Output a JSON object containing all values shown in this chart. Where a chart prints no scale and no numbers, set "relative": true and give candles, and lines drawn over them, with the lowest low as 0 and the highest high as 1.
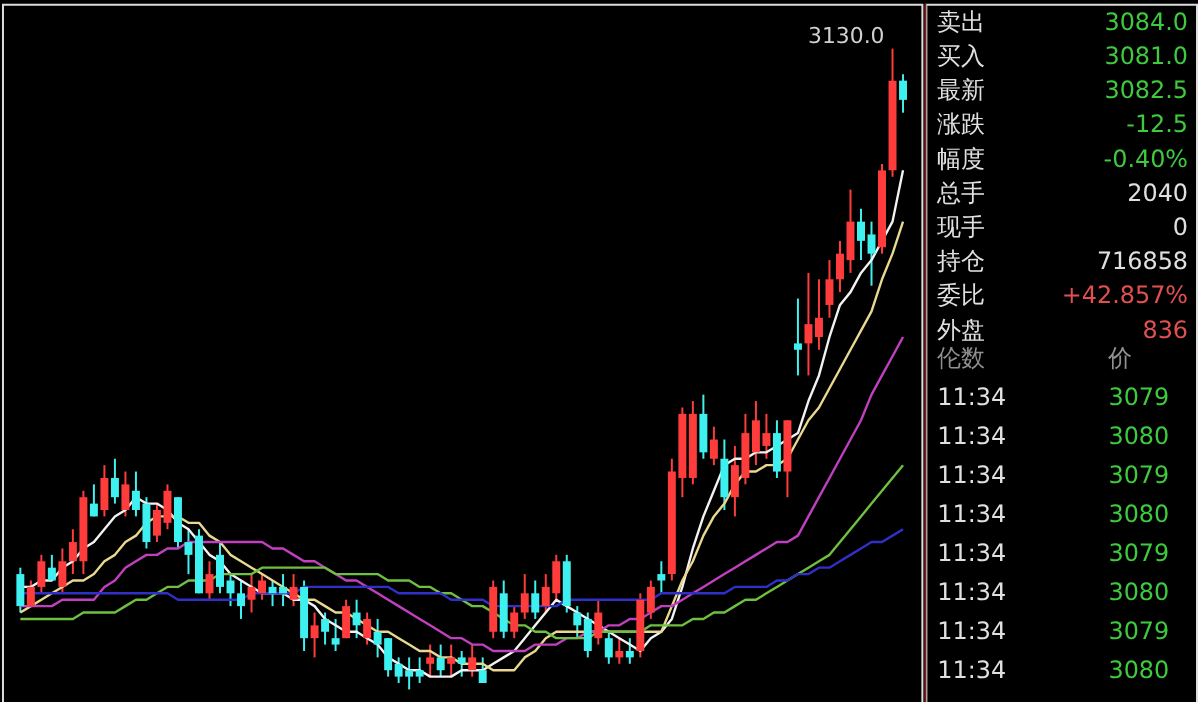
{
  "chart_data": [
    {
      "type": "candlestick",
      "relative": true,
      "tick_labels": false,
      "categories": [
        null,
        null,
        null,
        null,
        null,
        null,
        null,
        null,
        null,
        null,
        null,
        null,
        null,
        null,
        null,
        null,
        null,
        null,
        null,
        null,
        null,
        null,
        null,
        null,
        null,
        null,
        null,
        null,
        null,
        null,
        null,
        null,
        null,
        null,
        null,
        null,
        null,
        null,
        null,
        null,
        null,
        null,
        null,
        null,
        null,
        null,
        null,
        null,
        null,
        null,
        null,
        null,
        null,
        null,
        null,
        null,
        null,
        null,
        null,
        null,
        null,
        null,
        null,
        null,
        null,
        null,
        null,
        null,
        null,
        null,
        null,
        null,
        null,
        null,
        null,
        null,
        null,
        null,
        null,
        null,
        null,
        null,
        null,
        null,
        null
      ],
      "colors": [
        "#3ff0f0",
        "#ff3c3c",
        "#ff3c3c",
        "#3ff0f0",
        "#ff3c3c",
        "#ff3c3c",
        "#ff3c3c",
        "#3ff0f0",
        "#ff3c3c",
        "#3ff0f0",
        "#ff3c3c",
        "#3ff0f0",
        "#3ff0f0",
        "#ff3c3c",
        "#ff3c3c",
        "#3ff0f0",
        "#3ff0f0",
        "#3ff0f0",
        "#ff3c3c",
        "#3ff0f0",
        "#3ff0f0",
        "#3ff0f0",
        "#ff3c3c",
        "#ff3c3c",
        "#3ff0f0",
        "#3ff0f0",
        "#ff3c3c",
        "#3ff0f0",
        "#ff3c3c",
        "#3ff0f0",
        "#3ff0f0",
        "#ff3c3c",
        "#3ff0f0",
        "#ff3c3c",
        "#3ff0f0",
        "#3ff0f0",
        "#3ff0f0",
        "#3ff0f0",
        "#3ff0f0",
        "#ff3c3c",
        "#3ff0f0",
        "#ff3c3c",
        "#3ff0f0",
        "#ff3c3c",
        "#3ff0f0",
        "#ff3c3c",
        "#3ff0f0",
        "#ff3c3c",
        "#ff3c3c",
        "#3ff0f0",
        "#ff3c3c",
        "#ff3c3c",
        "#3ff0f0",
        "#3ff0f0",
        "#3ff0f0",
        "#ff3c3c",
        "#3ff0f0",
        "#ff3c3c",
        "#3ff0f0",
        "#ff3c3c",
        "#ff3c3c",
        "#3ff0f0",
        "#ff3c3c",
        "#ff3c3c",
        "#ff3c3c",
        "#3ff0f0",
        "#ff3c3c",
        "#3ff0f0",
        "#ff3c3c",
        "#ff3c3c",
        "#ff3c3c",
        "#ff3c3c",
        "#3ff0f0",
        "#ff3c3c",
        "#3ff0f0",
        "#ff3c3c",
        "#ff3c3c",
        "#ff3c3c",
        "#ff3c3c",
        "#ff3c3c",
        "#3ff0f0",
        "#3ff0f0",
        "#ff3c3c",
        "#ff3c3c",
        "#3ff0f0"
      ],
      "ohlc": [
        [
          0.18,
          0.19,
          0.12,
          0.13
        ],
        [
          0.13,
          0.17,
          0.13,
          0.16
        ],
        [
          0.16,
          0.21,
          0.15,
          0.2
        ],
        [
          0.19,
          0.21,
          0.17,
          0.17
        ],
        [
          0.16,
          0.22,
          0.15,
          0.2
        ],
        [
          0.2,
          0.25,
          0.18,
          0.23
        ],
        [
          0.2,
          0.31,
          0.18,
          0.3
        ],
        [
          0.29,
          0.32,
          0.27,
          0.27
        ],
        [
          0.28,
          0.35,
          0.27,
          0.33
        ],
        [
          0.33,
          0.36,
          0.29,
          0.3
        ],
        [
          0.28,
          0.34,
          0.27,
          0.32
        ],
        [
          0.31,
          0.34,
          0.27,
          0.28
        ],
        [
          0.29,
          0.3,
          0.22,
          0.23
        ],
        [
          0.24,
          0.29,
          0.23,
          0.28
        ],
        [
          0.26,
          0.32,
          0.25,
          0.31
        ],
        [
          0.3,
          0.3,
          0.22,
          0.23
        ],
        [
          0.23,
          0.25,
          0.18,
          0.21
        ],
        [
          0.24,
          0.25,
          0.15,
          0.15
        ],
        [
          0.15,
          0.2,
          0.14,
          0.18
        ],
        [
          0.21,
          0.23,
          0.15,
          0.16
        ],
        [
          0.17,
          0.18,
          0.13,
          0.15
        ],
        [
          0.15,
          0.17,
          0.11,
          0.13
        ],
        [
          0.14,
          0.18,
          0.12,
          0.16
        ],
        [
          0.15,
          0.18,
          0.14,
          0.17
        ],
        [
          0.16,
          0.17,
          0.13,
          0.15
        ],
        [
          0.16,
          0.18,
          0.13,
          0.15
        ],
        [
          0.14,
          0.18,
          0.13,
          0.16
        ],
        [
          0.16,
          0.17,
          0.06,
          0.08
        ],
        [
          0.08,
          0.12,
          0.05,
          0.1
        ],
        [
          0.11,
          0.12,
          0.07,
          0.09
        ],
        [
          0.08,
          0.11,
          0.06,
          0.07
        ],
        [
          0.08,
          0.14,
          0.08,
          0.13
        ],
        [
          0.12,
          0.14,
          0.08,
          0.1
        ],
        [
          0.08,
          0.12,
          0.07,
          0.11
        ],
        [
          0.09,
          0.11,
          0.05,
          0.07
        ],
        [
          0.08,
          0.08,
          0.02,
          0.03
        ],
        [
          0.04,
          0.05,
          0.01,
          0.02
        ],
        [
          0.03,
          0.05,
          0.0,
          0.02
        ],
        [
          0.03,
          0.05,
          0.01,
          0.02
        ],
        [
          0.04,
          0.07,
          0.02,
          0.05
        ],
        [
          0.05,
          0.07,
          0.02,
          0.03
        ],
        [
          0.04,
          0.07,
          0.02,
          0.05
        ],
        [
          0.05,
          0.06,
          0.02,
          0.04
        ],
        [
          0.03,
          0.07,
          0.02,
          0.05
        ],
        [
          0.03,
          0.05,
          0.01,
          0.01
        ],
        [
          0.09,
          0.17,
          0.08,
          0.16
        ],
        [
          0.15,
          0.17,
          0.08,
          0.09
        ],
        [
          0.09,
          0.13,
          0.08,
          0.12
        ],
        [
          0.12,
          0.18,
          0.11,
          0.15
        ],
        [
          0.15,
          0.17,
          0.11,
          0.12
        ],
        [
          0.13,
          0.18,
          0.12,
          0.16
        ],
        [
          0.15,
          0.21,
          0.14,
          0.2
        ],
        [
          0.2,
          0.21,
          0.12,
          0.13
        ],
        [
          0.12,
          0.13,
          0.08,
          0.1
        ],
        [
          0.11,
          0.12,
          0.05,
          0.06
        ],
        [
          0.08,
          0.14,
          0.07,
          0.12
        ],
        [
          0.08,
          0.09,
          0.04,
          0.05
        ],
        [
          0.05,
          0.08,
          0.04,
          0.06
        ],
        [
          0.06,
          0.08,
          0.04,
          0.05
        ],
        [
          0.06,
          0.15,
          0.05,
          0.14
        ],
        [
          0.12,
          0.17,
          0.11,
          0.16
        ],
        [
          0.18,
          0.2,
          0.15,
          0.17
        ],
        [
          0.18,
          0.36,
          0.17,
          0.34
        ],
        [
          0.33,
          0.44,
          0.3,
          0.43
        ],
        [
          0.33,
          0.45,
          0.32,
          0.43
        ],
        [
          0.43,
          0.46,
          0.36,
          0.37
        ],
        [
          0.36,
          0.41,
          0.35,
          0.39
        ],
        [
          0.36,
          0.39,
          0.28,
          0.3
        ],
        [
          0.3,
          0.38,
          0.27,
          0.35
        ],
        [
          0.33,
          0.43,
          0.32,
          0.4
        ],
        [
          0.37,
          0.45,
          0.35,
          0.42
        ],
        [
          0.38,
          0.43,
          0.36,
          0.4
        ],
        [
          0.4,
          0.42,
          0.33,
          0.34
        ],
        [
          0.34,
          0.42,
          0.3,
          0.42
        ],
        [
          0.54,
          0.61,
          0.49,
          0.53
        ],
        [
          0.54,
          0.65,
          0.49,
          0.57
        ],
        [
          0.55,
          0.64,
          0.53,
          0.58
        ],
        [
          0.6,
          0.67,
          0.58,
          0.64
        ],
        [
          0.64,
          0.7,
          0.62,
          0.68
        ],
        [
          0.67,
          0.78,
          0.65,
          0.73
        ],
        [
          0.73,
          0.75,
          0.67,
          0.7
        ],
        [
          0.71,
          0.73,
          0.63,
          0.68
        ],
        [
          0.69,
          0.82,
          0.68,
          0.81
        ],
        [
          0.81,
          1.0,
          0.8,
          0.95
        ],
        [
          0.95,
          0.96,
          0.9,
          0.92
        ]
      ],
      "series": [
        {
          "type": "line",
          "color": "#f2f2f2",
          "values": [
            0.16,
            0.16,
            0.17,
            0.17,
            0.19,
            0.2,
            0.22,
            0.23,
            0.25,
            0.27,
            0.28,
            0.3,
            0.29,
            0.29,
            0.28,
            0.26,
            0.25,
            0.23,
            0.21,
            0.2,
            0.18,
            0.17,
            0.16,
            0.15,
            0.15,
            0.15,
            0.14,
            0.14,
            0.13,
            0.11,
            0.1,
            0.09,
            0.09,
            0.08,
            0.07,
            0.05,
            0.04,
            0.03,
            0.03,
            0.02,
            0.02,
            0.02,
            0.03,
            0.03,
            0.03,
            0.04,
            0.05,
            0.06,
            0.08,
            0.1,
            0.12,
            0.14,
            0.13,
            0.12,
            0.11,
            0.1,
            0.09,
            0.08,
            0.07,
            0.06,
            0.08,
            0.09,
            0.11,
            0.16,
            0.22,
            0.27,
            0.31,
            0.35,
            0.36,
            0.36,
            0.37,
            0.37,
            0.38,
            0.39,
            0.4,
            0.45,
            0.49,
            0.55,
            0.6,
            0.62,
            0.65,
            0.67,
            0.7,
            0.73,
            0.81
          ]
        },
        {
          "type": "line",
          "color": "#e8d890",
          "values": [
            0.12,
            0.13,
            0.14,
            0.15,
            0.16,
            0.17,
            0.17,
            0.18,
            0.2,
            0.21,
            0.23,
            0.24,
            0.26,
            0.27,
            0.27,
            0.27,
            0.26,
            0.26,
            0.24,
            0.23,
            0.21,
            0.2,
            0.19,
            0.18,
            0.17,
            0.16,
            0.15,
            0.14,
            0.14,
            0.13,
            0.12,
            0.12,
            0.11,
            0.1,
            0.09,
            0.09,
            0.08,
            0.07,
            0.06,
            0.06,
            0.05,
            0.05,
            0.04,
            0.04,
            0.04,
            0.03,
            0.03,
            0.03,
            0.05,
            0.06,
            0.08,
            0.09,
            0.09,
            0.09,
            0.09,
            0.09,
            0.09,
            0.09,
            0.09,
            0.09,
            0.09,
            0.09,
            0.13,
            0.17,
            0.2,
            0.24,
            0.27,
            0.29,
            0.32,
            0.34,
            0.34,
            0.35,
            0.35,
            0.36,
            0.39,
            0.42,
            0.44,
            0.47,
            0.5,
            0.53,
            0.56,
            0.59,
            0.64,
            0.68,
            0.73
          ]
        },
        {
          "type": "line",
          "color": "#c040c0",
          "values": [
            0.13,
            0.13,
            0.13,
            0.13,
            0.14,
            0.14,
            0.14,
            0.14,
            0.16,
            0.17,
            0.19,
            0.2,
            0.21,
            0.21,
            0.22,
            0.22,
            0.23,
            0.23,
            0.23,
            0.23,
            0.23,
            0.23,
            0.23,
            0.23,
            0.22,
            0.22,
            0.21,
            0.2,
            0.2,
            0.19,
            0.18,
            0.17,
            0.17,
            0.16,
            0.15,
            0.14,
            0.13,
            0.12,
            0.11,
            0.1,
            0.09,
            0.08,
            0.08,
            0.07,
            0.07,
            0.06,
            0.06,
            0.06,
            0.06,
            0.07,
            0.07,
            0.07,
            0.08,
            0.08,
            0.09,
            0.09,
            0.1,
            0.1,
            0.11,
            0.11,
            0.12,
            0.13,
            0.13,
            0.14,
            0.15,
            0.16,
            0.17,
            0.18,
            0.19,
            0.2,
            0.21,
            0.22,
            0.23,
            0.23,
            0.24,
            0.27,
            0.3,
            0.33,
            0.36,
            0.39,
            0.42,
            0.46,
            0.49,
            0.52,
            0.55
          ]
        },
        {
          "type": "line",
          "color": "#6ec040",
          "values": [
            0.11,
            0.11,
            0.11,
            0.11,
            0.11,
            0.11,
            0.12,
            0.12,
            0.12,
            0.12,
            0.13,
            0.14,
            0.14,
            0.15,
            0.16,
            0.16,
            0.17,
            0.17,
            0.17,
            0.18,
            0.18,
            0.18,
            0.18,
            0.19,
            0.19,
            0.19,
            0.19,
            0.19,
            0.19,
            0.19,
            0.18,
            0.18,
            0.18,
            0.18,
            0.18,
            0.17,
            0.17,
            0.17,
            0.16,
            0.16,
            0.15,
            0.15,
            0.14,
            0.13,
            0.13,
            0.12,
            0.11,
            0.1,
            0.1,
            0.09,
            0.09,
            0.08,
            0.08,
            0.08,
            0.08,
            0.09,
            0.09,
            0.09,
            0.09,
            0.09,
            0.1,
            0.1,
            0.1,
            0.1,
            0.11,
            0.11,
            0.12,
            0.12,
            0.13,
            0.14,
            0.14,
            0.15,
            0.16,
            0.17,
            0.18,
            0.19,
            0.2,
            0.21,
            0.23,
            0.25,
            0.27,
            0.29,
            0.31,
            0.33,
            0.35
          ]
        },
        {
          "type": "line",
          "color": "#3030c8",
          "values": [
            0.15,
            0.15,
            0.15,
            0.15,
            0.15,
            0.15,
            0.15,
            0.15,
            0.15,
            0.15,
            0.15,
            0.15,
            0.15,
            0.15,
            0.15,
            0.14,
            0.14,
            0.14,
            0.14,
            0.14,
            0.14,
            0.14,
            0.15,
            0.15,
            0.15,
            0.15,
            0.15,
            0.16,
            0.16,
            0.16,
            0.16,
            0.16,
            0.16,
            0.16,
            0.16,
            0.16,
            0.15,
            0.15,
            0.15,
            0.15,
            0.15,
            0.14,
            0.14,
            0.14,
            0.14,
            0.13,
            0.13,
            0.13,
            0.13,
            0.13,
            0.13,
            0.13,
            0.14,
            0.14,
            0.14,
            0.14,
            0.14,
            0.14,
            0.14,
            0.14,
            0.14,
            0.15,
            0.15,
            0.15,
            0.15,
            0.15,
            0.15,
            0.15,
            0.16,
            0.16,
            0.16,
            0.16,
            0.17,
            0.17,
            0.18,
            0.18,
            0.19,
            0.19,
            0.2,
            0.21,
            0.22,
            0.23,
            0.23,
            0.24,
            0.25
          ]
        }
      ],
      "annotations": [
        "3130.0"
      ]
    },
    {
      "type": "other",
      "annotations": [
        "卖出",
        "3084.0",
        "买入",
        "3081.0",
        "最新",
        "3082.5",
        "涨跌",
        "-12.5",
        "幅度",
        "-0.40%",
        "总手",
        "2040",
        "现手",
        "0",
        "持仓",
        "716858",
        "委比",
        "+42.857%",
        "外盘",
        "836",
        "伦数",
        "价",
        "11:34",
        "3079",
        "11:34",
        "3080",
        "11:34",
        "3079",
        "11:34",
        "3080",
        "11:34",
        "3079",
        "11:34",
        "3080",
        "11:34",
        "3079",
        "11:34",
        "3080"
      ],
      "colors": [
        "#e0e0e0",
        "#3ec93e",
        "#e0e0e0",
        "#3ec93e",
        "#e0e0e0",
        "#3ec93e",
        "#e0e0e0",
        "#3ec93e",
        "#e0e0e0",
        "#3ec93e",
        "#e0e0e0",
        "#e0e0e0",
        "#e0e0e0",
        "#e0e0e0",
        "#e0e0e0",
        "#e0e0e0",
        "#e0e0e0",
        "#e05050",
        "#e0e0e0",
        "#e05050",
        "#909090",
        "#909090",
        "#e0e0e0",
        "#3ec93e",
        "#e0e0e0",
        "#3ec93e",
        "#e0e0e0",
        "#3ec93e",
        "#e0e0e0",
        "#3ec93e",
        "#e0e0e0",
        "#3ec93e",
        "#e0e0e0",
        "#3ec93e",
        "#e0e0e0",
        "#3ec93e",
        "#e0e0e0",
        "#3ec93e"
      ]
    }
  ]
}
